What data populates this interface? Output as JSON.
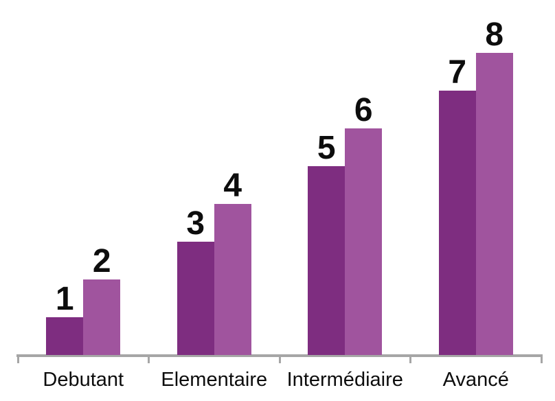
{
  "chart_data": {
    "type": "bar",
    "title": "",
    "xlabel": "",
    "ylabel": "",
    "categories": [
      "Debutant",
      "Elementaire",
      "Intermédiaire",
      "Avancé"
    ],
    "series": [
      {
        "name": "series-1",
        "values": [
          1,
          3,
          5,
          7
        ],
        "color": "#7E2D80"
      },
      {
        "name": "series-2",
        "values": [
          2,
          4,
          6,
          8
        ],
        "color": "#A0549E"
      }
    ],
    "ylim": [
      0,
      8
    ],
    "gridlines": false,
    "legend_position": "none",
    "data_labels": true,
    "axis_color": "#A6A6A6",
    "label_color": "#0D0D0D",
    "background_color": "#FFFFFF"
  }
}
